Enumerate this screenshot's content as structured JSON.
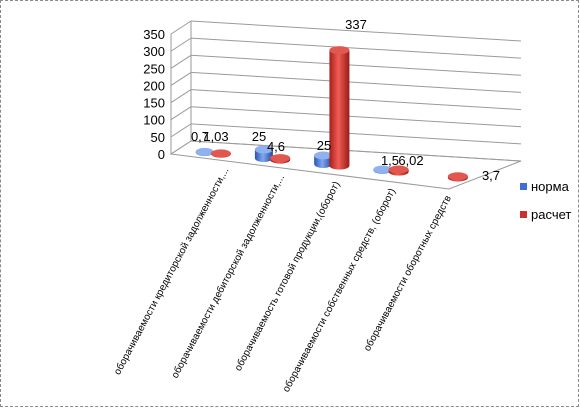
{
  "chart_data": {
    "type": "bar",
    "style": "3d-clustered-cylinder",
    "categories": [
      "оборачиваемости кредиторской задолженности,...",
      "оборачиваемости дебиторской задолженности,...",
      "оборачиваемость готовой продукции,(оборот)",
      "оборачиваемости собственных средств, (оборот)",
      "оборачиваемости оборотных средств"
    ],
    "series": [
      {
        "name": "норма",
        "color": "#3f6fd0",
        "values": [
          0.7,
          25,
          25,
          1.5,
          null
        ],
        "labels": [
          "0,7",
          "25",
          "25",
          "1,5",
          ""
        ]
      },
      {
        "name": "расчет",
        "color": "#c8312c",
        "values": [
          1.03,
          4.6,
          337,
          6.02,
          3.7
        ],
        "labels": [
          "1,03",
          "4,6",
          "337",
          "6,02",
          "3,7"
        ]
      }
    ],
    "yticks": [
      "0",
      "50",
      "100",
      "150",
      "200",
      "250",
      "300",
      "350"
    ],
    "ylim": [
      0,
      350
    ],
    "grid": true,
    "legend": "right"
  }
}
